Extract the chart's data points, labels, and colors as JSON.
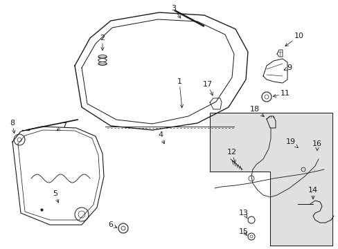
{
  "bg_color": "#ffffff",
  "line_color": "#1a1a1a",
  "shaded_color": "#e0e0e0",
  "figsize": [
    4.89,
    3.6
  ],
  "dpi": 100
}
